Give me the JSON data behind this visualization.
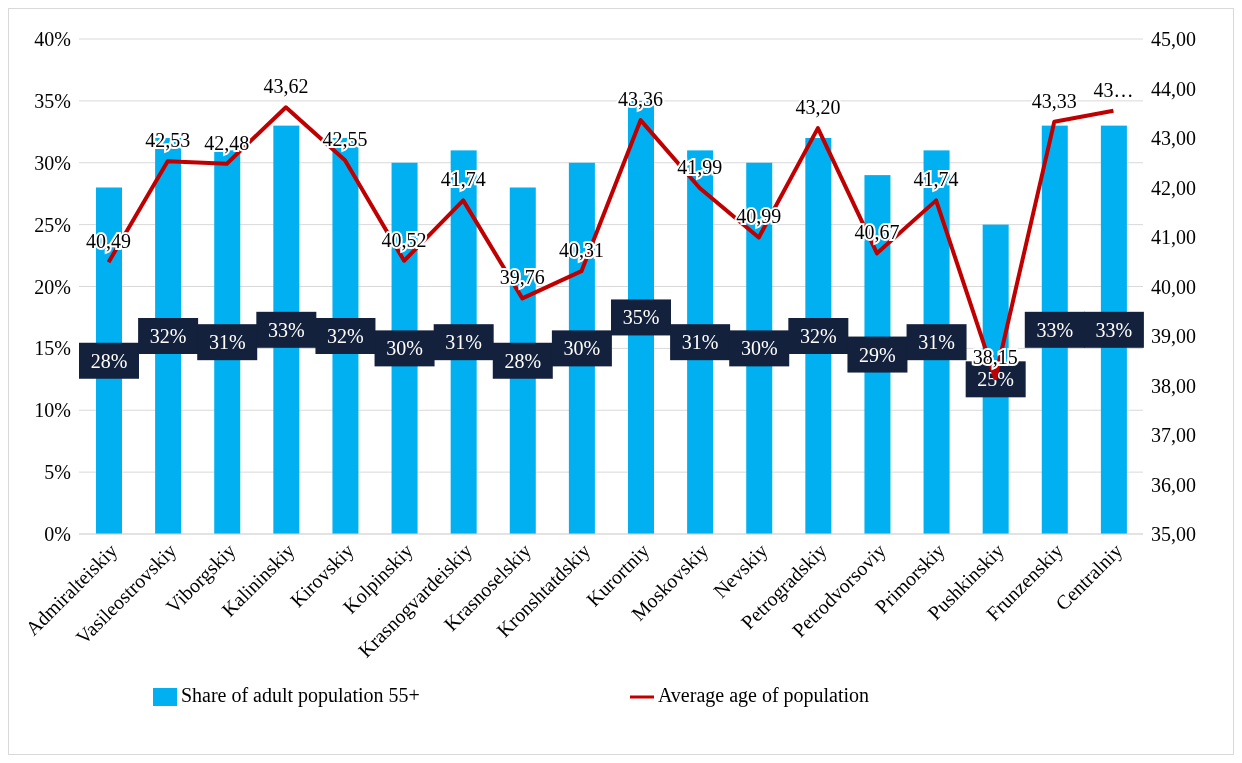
{
  "chart_data": {
    "type": "bar",
    "categories": [
      "Admiralteiskiy",
      "Vasileostrovskiy",
      "Viborgskiy",
      "Kalininskiy",
      "Kirovskiy",
      "Kolpinskiy",
      "Krasnogvardeiskiy",
      "Krasnoselskiy",
      "Kronshtatdskiy",
      "Kurortniy",
      "Moskovskiy",
      "Nevskiy",
      "Petrogradskiy",
      "Petrodvorsoviy",
      "Primorskiy",
      "Pushkinskiy",
      "Frunzenskiy",
      "Centralniy"
    ],
    "series": [
      {
        "name": "Share of adult population 55+",
        "color": "#00b0f0",
        "values": [
          28,
          32,
          31,
          33,
          32,
          30,
          31,
          28,
          30,
          35,
          31,
          30,
          32,
          29,
          31,
          25,
          33,
          33
        ],
        "value_labels": [
          "28%",
          "32%",
          "31%",
          "33%",
          "32%",
          "30%",
          "31%",
          "28%",
          "30%",
          "35%",
          "31%",
          "30%",
          "32%",
          "29%",
          "31%",
          "25%",
          "33%",
          "33%"
        ]
      },
      {
        "name": "Average age of population",
        "type": "line",
        "axis": "y2",
        "color": "#c00000",
        "values": [
          40.49,
          42.53,
          42.48,
          43.62,
          42.55,
          40.52,
          41.74,
          39.76,
          40.31,
          43.36,
          41.99,
          40.99,
          43.2,
          40.67,
          41.74,
          38.15,
          43.33,
          43.55
        ],
        "value_labels": [
          "40,49",
          "42,53",
          "42,48",
          "43,62",
          "42,55",
          "40,52",
          "41,74",
          "39,76",
          "40,31",
          "43,36",
          "41,99",
          "40,99",
          "43,20",
          "40,67",
          "41,74",
          "38,15",
          "43,33",
          "43…"
        ]
      }
    ],
    "ylim": [
      0,
      40
    ],
    "yticks": [
      {
        "value": 0,
        "label": "0%"
      },
      {
        "value": 5,
        "label": "5%"
      },
      {
        "value": 10,
        "label": "10%"
      },
      {
        "value": 15,
        "label": "15%"
      },
      {
        "value": 20,
        "label": "20%"
      },
      {
        "value": 25,
        "label": "25%"
      },
      {
        "value": 30,
        "label": "30%"
      },
      {
        "value": 35,
        "label": "35%"
      },
      {
        "value": 40,
        "label": "40%"
      }
    ],
    "y2lim": [
      35,
      45
    ],
    "y2ticks": [
      {
        "value": 35,
        "label": "35,00"
      },
      {
        "value": 36,
        "label": "36,00"
      },
      {
        "value": 37,
        "label": "37,00"
      },
      {
        "value": 38,
        "label": "38,00"
      },
      {
        "value": 39,
        "label": "39,00"
      },
      {
        "value": 40,
        "label": "40,00"
      },
      {
        "value": 41,
        "label": "41,00"
      },
      {
        "value": 42,
        "label": "42,00"
      },
      {
        "value": 43,
        "label": "43,00"
      },
      {
        "value": 44,
        "label": "44,00"
      },
      {
        "value": 45,
        "label": "45,00"
      }
    ],
    "grid": "y",
    "legend": "bottom",
    "marker": "none",
    "line_style": "solid"
  }
}
